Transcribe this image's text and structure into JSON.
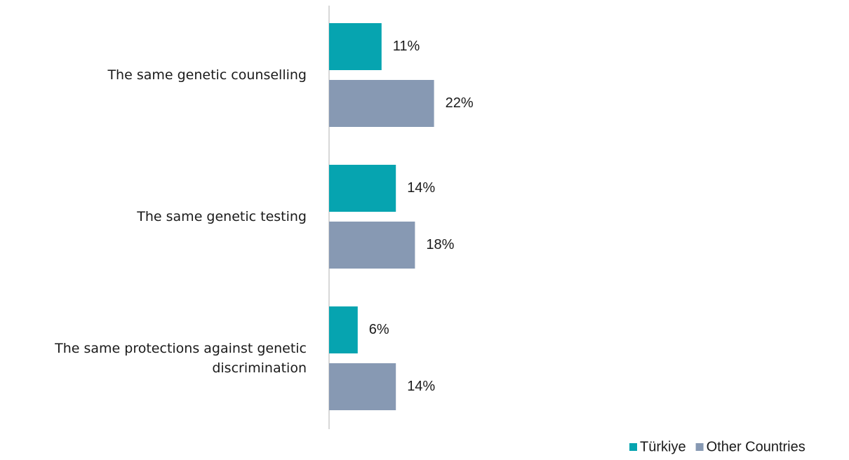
{
  "chart_data": {
    "type": "bar",
    "categories": [
      "The same genetic counselling",
      "The same genetic testing",
      "The same protections against genetic discrimination"
    ],
    "series": [
      {
        "name": "Türkiye",
        "color": "#06a4b0",
        "values": [
          11,
          14,
          6
        ],
        "value_labels": [
          "11%",
          "14%",
          "6%"
        ]
      },
      {
        "name": "Other Countries",
        "color": "#8799b3",
        "values": [
          22,
          18,
          14
        ],
        "value_labels": [
          "22%",
          "18%",
          "14%"
        ]
      }
    ]
  }
}
